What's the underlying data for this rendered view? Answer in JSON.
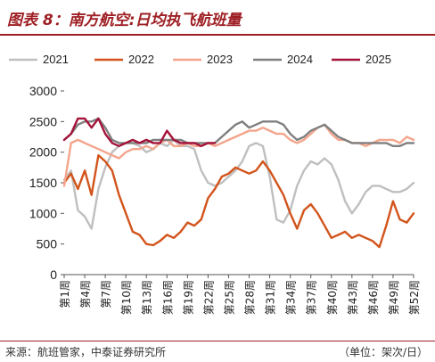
{
  "header": {
    "title": "图表 8：南方航空:日均执飞航班量"
  },
  "footer": {
    "source": "来源：航班管家，中泰证券研究所",
    "unit": "（单位：架次/日）"
  },
  "chart_data": {
    "type": "line",
    "title": "图表 8：南方航空:日均执飞航班量",
    "ylim": [
      0,
      3000
    ],
    "yticks": [
      0,
      500,
      1000,
      1500,
      2000,
      2500,
      3000
    ],
    "x": [
      1,
      2,
      3,
      4,
      5,
      6,
      7,
      8,
      9,
      10,
      11,
      12,
      13,
      14,
      15,
      16,
      17,
      18,
      19,
      20,
      21,
      22,
      23,
      24,
      25,
      26,
      27,
      28,
      29,
      30,
      31,
      32,
      33,
      34,
      35,
      36,
      37,
      38,
      39,
      40,
      41,
      42,
      43,
      44,
      45,
      46,
      47,
      48,
      49,
      50,
      51,
      52
    ],
    "xtick_labels": [
      "第1周",
      "第4周",
      "第7周",
      "第10周",
      "第13周",
      "第16周",
      "第19周",
      "第22周",
      "第25周",
      "第28周",
      "第31周",
      "第34周",
      "第37周",
      "第40周",
      "第43周",
      "第46周",
      "第49周",
      "第52周"
    ],
    "xtick_weeks": [
      1,
      4,
      7,
      10,
      13,
      16,
      19,
      22,
      25,
      28,
      31,
      34,
      37,
      40,
      43,
      46,
      49,
      52
    ],
    "grid": false,
    "legend_position": "top",
    "series": [
      {
        "name": "2021",
        "color": "#bfbfbf",
        "values": [
          1550,
          1700,
          1050,
          950,
          750,
          1400,
          1750,
          2000,
          2100,
          2150,
          2150,
          2100,
          2000,
          2050,
          2150,
          2100,
          2200,
          2100,
          2100,
          2050,
          1700,
          1500,
          1450,
          1500,
          1600,
          1700,
          1850,
          2100,
          2150,
          2100,
          1600,
          900,
          850,
          1050,
          1450,
          1700,
          1850,
          1800,
          1900,
          1800,
          1550,
          1200,
          1000,
          1150,
          1350,
          1450,
          1450,
          1400,
          1350,
          1350,
          1400,
          1500
        ]
      },
      {
        "name": "2022",
        "color": "#d2541b",
        "values": [
          1500,
          1650,
          1400,
          1700,
          1300,
          1950,
          1850,
          1700,
          1300,
          1000,
          700,
          650,
          500,
          480,
          550,
          650,
          600,
          700,
          850,
          800,
          900,
          1250,
          1400,
          1600,
          1650,
          1750,
          1700,
          1650,
          1700,
          1850,
          1700,
          1500,
          1300,
          1000,
          750,
          1050,
          1150,
          1000,
          800,
          600,
          650,
          700,
          600,
          650,
          600,
          550,
          450,
          800,
          1200,
          900,
          850,
          1000
        ]
      },
      {
        "name": "2023",
        "color": "#f4a58c",
        "values": [
          1450,
          2150,
          2200,
          2150,
          2100,
          2050,
          2000,
          1950,
          1900,
          2000,
          2050,
          2050,
          2100,
          2050,
          2150,
          2200,
          2100,
          2100,
          2150,
          2100,
          2100,
          2150,
          2100,
          2150,
          2200,
          2250,
          2300,
          2350,
          2350,
          2400,
          2350,
          2300,
          2300,
          2200,
          2150,
          2200,
          2300,
          2400,
          2450,
          2300,
          2200,
          2200,
          2150,
          2150,
          2100,
          2150,
          2200,
          2200,
          2200,
          2150,
          2250,
          2200
        ]
      },
      {
        "name": "2024",
        "color": "#7f7f7f",
        "values": [
          2200,
          2300,
          2450,
          2500,
          2500,
          2550,
          2400,
          2200,
          2150,
          2150,
          2150,
          2150,
          2150,
          2200,
          2200,
          2200,
          2200,
          2200,
          2150,
          2150,
          2150,
          2150,
          2150,
          2250,
          2350,
          2450,
          2500,
          2400,
          2450,
          2500,
          2500,
          2500,
          2450,
          2300,
          2200,
          2250,
          2350,
          2400,
          2450,
          2350,
          2250,
          2200,
          2150,
          2150,
          2150,
          2150,
          2150,
          2150,
          2100,
          2100,
          2150,
          2150
        ]
      },
      {
        "name": "2025",
        "color": "#a5123a",
        "values": [
          2200,
          2300,
          2550,
          2550,
          2400,
          2550,
          2300,
          2150,
          2100,
          2150,
          2200,
          2150,
          2200,
          2150,
          2150,
          2350,
          2200,
          2150,
          2150,
          2150,
          2100,
          2150,
          2150,
          null,
          null,
          null,
          null,
          null,
          null,
          null,
          null,
          null,
          null,
          null,
          null,
          null,
          null,
          null,
          null,
          null,
          null,
          null,
          null,
          null,
          null,
          null,
          null,
          null,
          null,
          null,
          null,
          null
        ]
      }
    ]
  }
}
